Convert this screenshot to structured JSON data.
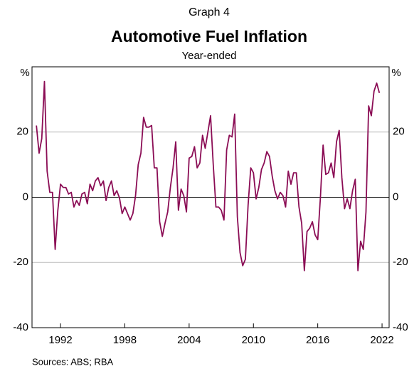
{
  "chart_data": {
    "type": "line",
    "label": "Graph 4",
    "title": "Automotive Fuel Inflation",
    "subtitle": "Year-ended",
    "y_unit": "%",
    "source": "Sources: ABS; RBA",
    "x": [
      1989.75,
      1990,
      1990.25,
      1990.5,
      1990.75,
      1991,
      1991.25,
      1991.5,
      1991.75,
      1992,
      1992.25,
      1992.5,
      1992.75,
      1993,
      1993.25,
      1993.5,
      1993.75,
      1994,
      1994.25,
      1994.5,
      1994.75,
      1995,
      1995.25,
      1995.5,
      1995.75,
      1996,
      1996.25,
      1996.5,
      1996.75,
      1997,
      1997.25,
      1997.5,
      1997.75,
      1998,
      1998.25,
      1998.5,
      1998.75,
      1999,
      1999.25,
      1999.5,
      1999.75,
      2000,
      2000.25,
      2000.5,
      2000.75,
      2001,
      2001.25,
      2001.5,
      2001.75,
      2002,
      2002.25,
      2002.5,
      2002.75,
      2003,
      2003.25,
      2003.5,
      2003.75,
      2004,
      2004.25,
      2004.5,
      2004.75,
      2005,
      2005.25,
      2005.5,
      2005.75,
      2006,
      2006.25,
      2006.5,
      2006.75,
      2007,
      2007.25,
      2007.5,
      2007.75,
      2008,
      2008.25,
      2008.5,
      2008.75,
      2009,
      2009.25,
      2009.5,
      2009.75,
      2010,
      2010.25,
      2010.5,
      2010.75,
      2011,
      2011.25,
      2011.5,
      2011.75,
      2012,
      2012.25,
      2012.5,
      2012.75,
      2013,
      2013.25,
      2013.5,
      2013.75,
      2014,
      2014.25,
      2014.5,
      2014.75,
      2015,
      2015.25,
      2015.5,
      2015.75,
      2016,
      2016.25,
      2016.5,
      2016.75,
      2017,
      2017.25,
      2017.5,
      2017.75,
      2018,
      2018.25,
      2018.5,
      2018.75,
      2019,
      2019.25,
      2019.5,
      2019.75,
      2020,
      2020.25,
      2020.5,
      2020.75,
      2021,
      2021.25,
      2021.5,
      2021.75
    ],
    "series": [
      {
        "name": "Automotive fuel",
        "color": "#8b0d55",
        "values": [
          22,
          13.5,
          18,
          35.5,
          8,
          1.5,
          1.5,
          -16,
          -4,
          4,
          3,
          3,
          1,
          1.5,
          -3,
          -1,
          -2.5,
          1,
          1.5,
          -2,
          4,
          2,
          5,
          6,
          3.5,
          5,
          -1,
          3,
          5,
          0.5,
          2,
          -0.2,
          -5,
          -3,
          -5,
          -7,
          -5,
          0.5,
          10,
          13.5,
          24.5,
          21.5,
          21.5,
          22,
          9,
          9,
          -7.5,
          -12,
          -8,
          -4.5,
          3,
          9,
          17,
          -4,
          2.5,
          0.5,
          -4.5,
          12,
          12.5,
          15.5,
          9,
          10.5,
          19,
          15,
          20,
          25,
          10,
          -3,
          -3,
          -4,
          -7,
          14.5,
          19,
          18.5,
          25.5,
          -6,
          -17,
          -21,
          -19,
          -2.5,
          9,
          7.5,
          -0.5,
          3,
          8.5,
          10.5,
          14,
          12.5,
          6.5,
          2,
          -0.5,
          1.5,
          0.5,
          -3,
          8,
          4,
          7.5,
          7.5,
          -3,
          -8,
          -22.5,
          -10.5,
          -9.5,
          -7.5,
          -11.5,
          -13,
          0,
          16,
          7,
          7.5,
          10.5,
          6,
          17,
          20.5,
          6,
          -3.5,
          -0.5,
          -3.5,
          2,
          5.5,
          -22.5,
          -13.5,
          -16,
          -4.5,
          28,
          25,
          32.5,
          35,
          32
        ]
      }
    ],
    "xlim": [
      1989.34,
      2022.66
    ],
    "xticks": [
      1992,
      1998,
      2004,
      2010,
      2016,
      2022
    ],
    "ylim": [
      -40,
      40
    ],
    "yticks": [
      -40,
      -20,
      0,
      20
    ],
    "grid": true
  }
}
